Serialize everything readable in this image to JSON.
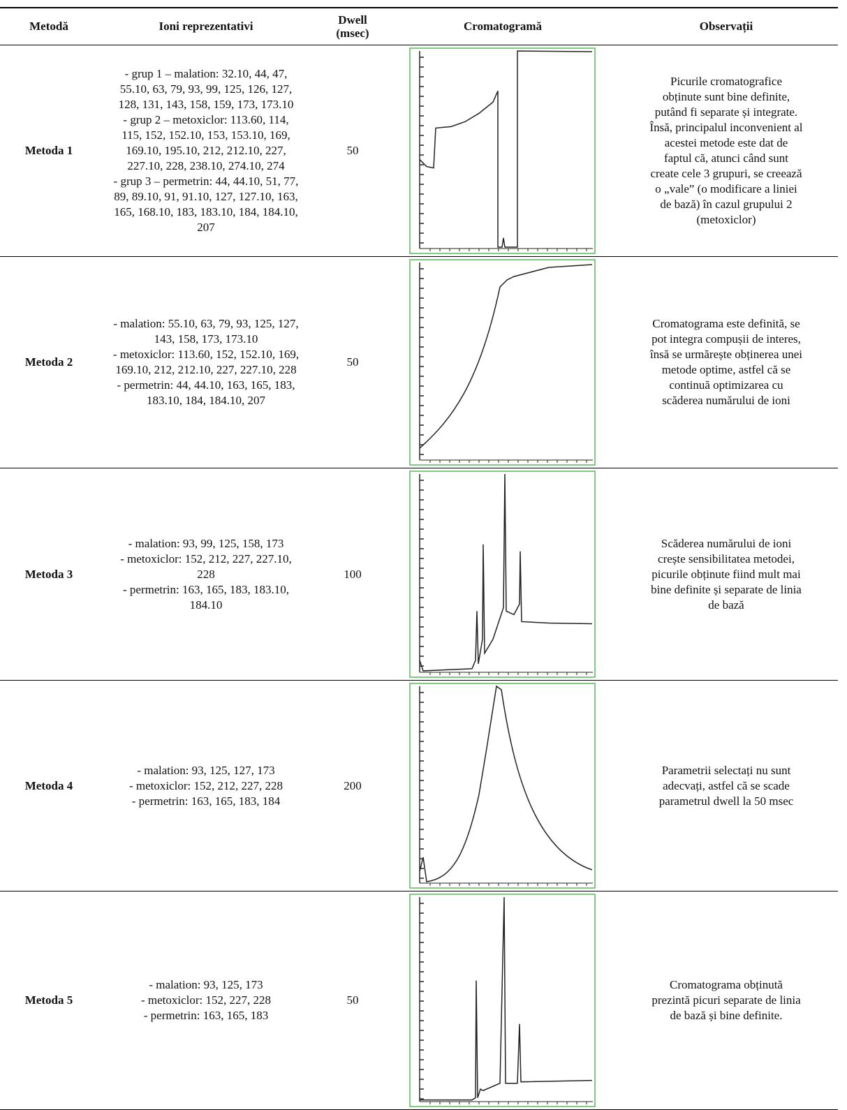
{
  "header": {
    "method": "Metodă",
    "ions": "Ioni reprezentativi",
    "dwell": "Dwell (msec)",
    "chromatogram": "Cromatogramă",
    "observations": "Observații"
  },
  "rows": [
    {
      "method": "Metoda 1",
      "dwell": 50,
      "ions": [
        "- grup 1 – malation: 32.10, 44, 47,",
        "55.10, 63, 79, 93, 99, 125, 126, 127,",
        "128, 131, 143, 158, 159, 173, 173.10",
        "- grup 2 – metoxiclor: 113.60, 114,",
        "115, 152, 152.10, 153, 153.10, 169,",
        "169.10, 195.10, 212, 212.10, 227,",
        "227.10, 228, 238.10, 274.10, 274",
        "- grup 3 – permetrin: 44, 44.10, 51, 77,",
        "89, 89.10, 91, 91.10, 127, 127.10, 163,",
        "165, 168.10, 183, 183.10, 184, 184.10,",
        "207"
      ],
      "observations": [
        "Picurile cromatografice",
        "obținute sunt bine definite,",
        "putând fi separate și integrate.",
        "Însă, principalul inconvenient al",
        "acestei metode este dat de",
        "faptul că, atunci când sunt",
        "create cele 3 grupuri, se creează",
        "o „vale” (o modificare a liniei",
        "de bază) în cazul grupului 2",
        "(metoxiclor)"
      ]
    },
    {
      "method": "Metoda 2",
      "dwell": 50,
      "ions": [
        "- malation: 55.10, 63, 79, 93, 125, 127,",
        "143, 158, 173, 173.10",
        "- metoxiclor: 113.60, 152, 152.10, 169,",
        "169.10, 212, 212.10, 227, 227.10, 228",
        "- permetrin: 44, 44.10, 163, 165, 183,",
        "183.10, 184, 184.10, 207"
      ],
      "observations": [
        "Cromatograma este definită, se",
        "pot integra compușii de interes,",
        "însă se urmărește obținerea unei",
        "metode optime, astfel că se",
        "continuă optimizarea cu",
        "scăderea numărului de ioni"
      ]
    },
    {
      "method": "Metoda 3",
      "dwell": 100,
      "ions": [
        "- malation: 93, 99, 125, 158, 173",
        "- metoxiclor: 152, 212, 227, 227.10,",
        "228",
        "- permetrin: 163, 165, 183, 183.10,",
        "184.10"
      ],
      "observations": [
        "Scăderea numărului de ioni",
        "crește sensibilitatea metodei,",
        "picurile obținute fiind mult mai",
        "bine definite și separate de linia",
        "de bază"
      ]
    },
    {
      "method": "Metoda 4",
      "dwell": 200,
      "ions": [
        "- malation: 93, 125, 127, 173",
        "- metoxiclor: 152, 212, 227, 228",
        "- permetrin: 163, 165, 183, 184"
      ],
      "observations": [
        "Parametrii selectați nu sunt",
        "adecvați, astfel că se scade",
        "parametrul dwell la 50 msec"
      ]
    },
    {
      "method": "Metoda 5",
      "dwell": 50,
      "ions": [
        "- malation: 93, 125, 173",
        "- metoxiclor: 152, 227, 228",
        "- permetrin: 163, 165, 183"
      ],
      "observations": [
        "Cromatograma obținută",
        "prezintă picuri separate de linia",
        "de bază și bine definite."
      ]
    }
  ]
}
